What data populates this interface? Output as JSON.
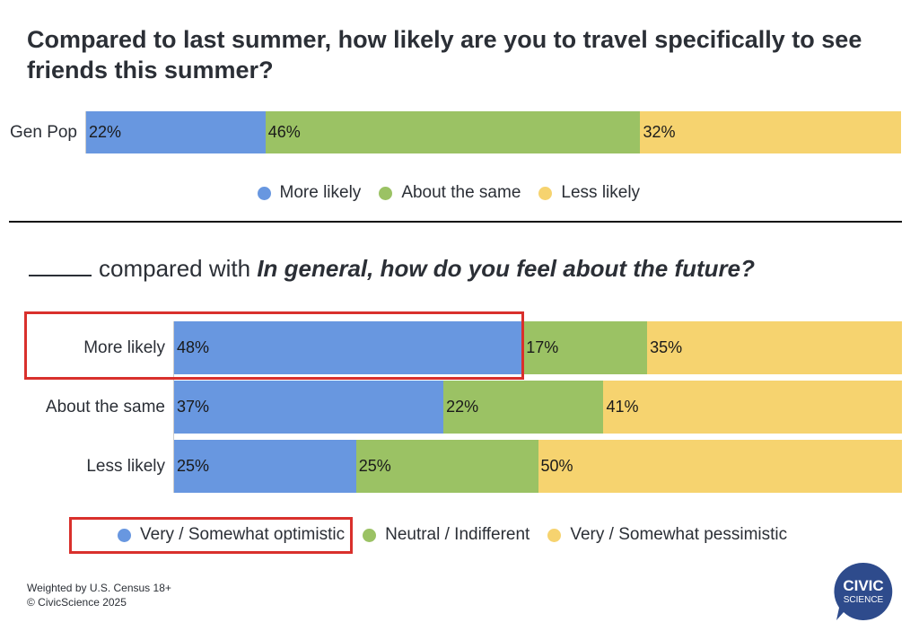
{
  "chart_data": [
    {
      "type": "bar",
      "orientation": "horizontal",
      "stacked": true,
      "title": "Compared to last summer, how likely are you to travel specifically to see friends this summer?",
      "categories": [
        "Gen Pop"
      ],
      "series": [
        {
          "name": "More likely",
          "values": [
            22
          ],
          "labels": [
            "22%"
          ]
        },
        {
          "name": "About the same",
          "values": [
            46
          ],
          "labels": [
            "46%"
          ]
        },
        {
          "name": "Less likely",
          "values": [
            32
          ],
          "labels": [
            "32%"
          ]
        }
      ],
      "xlim": [
        0,
        100
      ],
      "legend_position": "bottom-center"
    },
    {
      "type": "bar",
      "orientation": "horizontal",
      "stacked": true,
      "title_prefix": "compared with",
      "title_emphasis": "In general, how do you feel about the future?",
      "categories": [
        "More likely",
        "About the same",
        "Less likely"
      ],
      "series": [
        {
          "name": "Very / Somewhat optimistic",
          "values": [
            48,
            37,
            25
          ],
          "labels": [
            "48%",
            "37%",
            "25%"
          ]
        },
        {
          "name": "Neutral / Indifferent",
          "values": [
            17,
            22,
            25
          ],
          "labels": [
            "17%",
            "22%",
            "25%"
          ]
        },
        {
          "name": "Very / Somewhat pessimistic",
          "values": [
            35,
            41,
            50
          ],
          "labels": [
            "35%",
            "41%",
            "50%"
          ]
        }
      ],
      "xlim": [
        0,
        100
      ],
      "legend_position": "bottom-center",
      "highlighted": [
        "More likely row - Very / Somewhat optimistic segment",
        "Very / Somewhat optimistic legend entry"
      ]
    }
  ],
  "colors": {
    "blue": "#6897e0",
    "green": "#9bc264",
    "yellow": "#f6d36f",
    "highlight": "#d9302c"
  },
  "footnote": {
    "line1": "Weighted by U.S. Census 18+",
    "line2": "© CivicScience 2025"
  },
  "logo": {
    "line1": "CIVIC",
    "line2": "SCIENCE",
    "color": "#2e4b8c",
    "icon": "speech-bubble-logo"
  }
}
